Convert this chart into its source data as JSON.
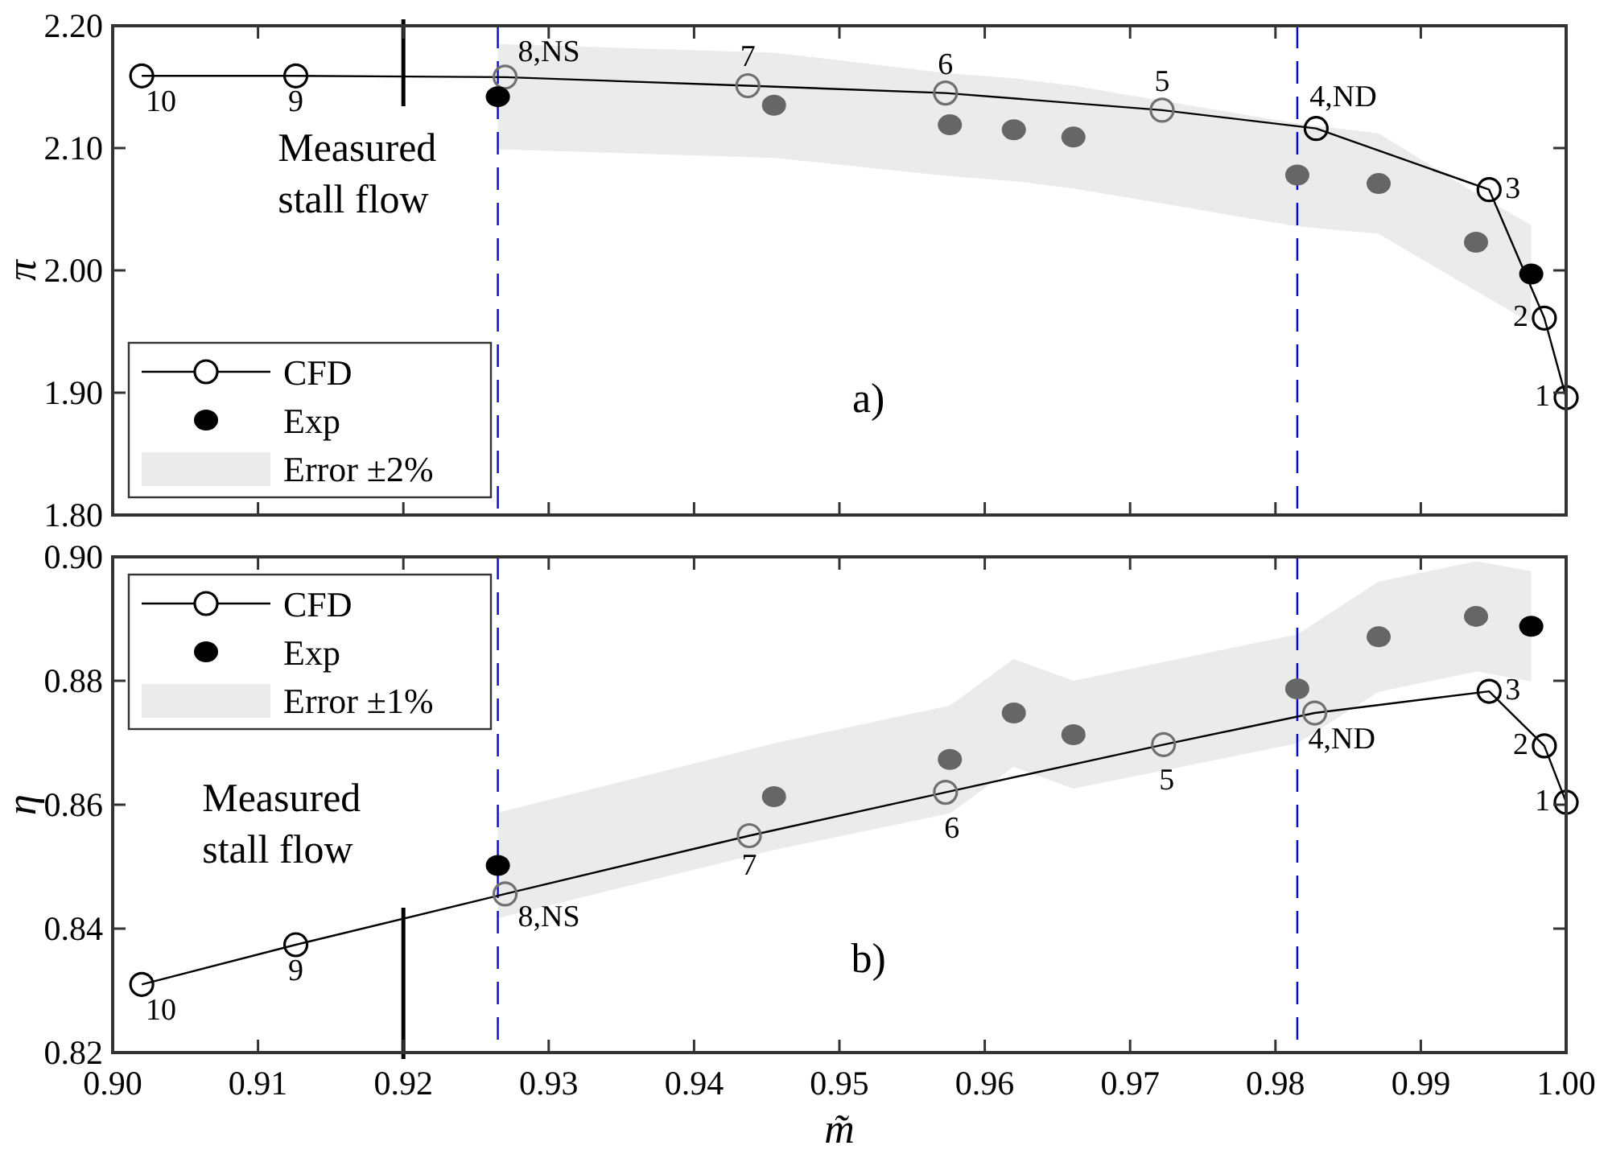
{
  "chart_data": [
    {
      "type": "line",
      "ylabel": "π",
      "xlim": [
        0.9,
        1.0
      ],
      "xticks": [
        0.9,
        0.91,
        0.92,
        0.93,
        0.94,
        0.95,
        0.96,
        0.97,
        0.98,
        0.99,
        1.0
      ],
      "ylim": [
        1.8,
        2.2
      ],
      "yticks": [
        {
          "value": 1.8,
          "label": "1.80"
        },
        {
          "value": 1.9,
          "label": "1.90"
        },
        {
          "value": 2.0,
          "label": "2.00"
        },
        {
          "value": 2.1,
          "label": "2.10"
        },
        {
          "value": 2.2,
          "label": "2.20"
        }
      ],
      "tick_labels": "y",
      "grid": false,
      "legend": "bottom left",
      "marker": "circle",
      "line_style": "solid",
      "series": [
        {
          "name": "CFD",
          "type": "line",
          "color": "#000000",
          "colors": [
            "#000000",
            "#000000",
            "#707070",
            "#707070",
            "#707070",
            "#707070",
            "#000000",
            "#000000",
            "#000000",
            "#000000"
          ],
          "x": [
            0.902,
            0.9126,
            0.927,
            0.9437,
            0.9573,
            0.9722,
            0.9828,
            0.9947,
            0.9985,
            1.0
          ],
          "values": [
            2.159,
            2.159,
            2.158,
            2.151,
            2.145,
            2.131,
            2.116,
            2.066,
            1.961,
            1.896
          ]
        },
        {
          "name": "Exp",
          "type": "scatter",
          "color": "#000000",
          "colors": [
            "#000000",
            "#666666",
            "#666666",
            "#666666",
            "#666666",
            "#666666",
            "#666666",
            "#666666",
            "#000000"
          ],
          "x": [
            0.9265,
            0.9455,
            0.9576,
            0.962,
            0.9661,
            0.9815,
            0.9871,
            0.9938,
            0.9976
          ],
          "values": [
            2.142,
            2.135,
            2.119,
            2.115,
            2.109,
            2.078,
            2.071,
            2.023,
            1.997
          ],
          "lower": [
            2.099,
            2.092,
            2.077,
            2.073,
            2.067,
            2.036,
            2.03,
            1.983,
            1.957
          ],
          "upper": [
            2.185,
            2.178,
            2.161,
            2.157,
            2.151,
            2.12,
            2.112,
            2.063,
            2.037
          ]
        }
      ],
      "ref_lines": [
        {
          "axis": "x",
          "value": 0.92,
          "label": "Measured stall flow",
          "color": "#000000",
          "line_style": "solid"
        },
        {
          "axis": "x",
          "value": 0.9265,
          "color": "#0000ff",
          "line_style": "dashed"
        },
        {
          "axis": "x",
          "value": 0.9815,
          "color": "#0000ff",
          "line_style": "dashed"
        }
      ],
      "annotations": [
        {
          "text": "10",
          "x": 0.902,
          "y": 2.159
        },
        {
          "text": "9",
          "x": 0.9126,
          "y": 2.159
        },
        {
          "text": "8,NS",
          "x": 0.927,
          "y": 2.158
        },
        {
          "text": "7",
          "x": 0.9437,
          "y": 2.151
        },
        {
          "text": "6",
          "x": 0.9573,
          "y": 2.145
        },
        {
          "text": "5",
          "x": 0.9722,
          "y": 2.131
        },
        {
          "text": "4,ND",
          "x": 0.9828,
          "y": 2.116
        },
        {
          "text": "3",
          "x": 0.9947,
          "y": 2.066
        },
        {
          "text": "2",
          "x": 0.9985,
          "y": 1.961
        },
        {
          "text": "1",
          "x": 1.0,
          "y": 1.896
        },
        "a)",
        "Error ±2%"
      ]
    },
    {
      "type": "line",
      "xlabel": "m̃",
      "ylabel": "η",
      "xlim": [
        0.9,
        1.0
      ],
      "xticks": [
        {
          "value": 0.9,
          "label": "0.90"
        },
        0.91,
        0.92,
        0.93,
        0.94,
        0.95,
        0.96,
        0.97,
        0.98,
        0.99,
        {
          "value": 1.0,
          "label": "1.00"
        }
      ],
      "ylim": [
        0.82,
        0.9
      ],
      "yticks": [
        0.82,
        0.84,
        0.86,
        0.88,
        {
          "value": 0.9,
          "label": "0.90"
        }
      ],
      "grid": false,
      "legend": "top left",
      "marker": "circle",
      "line_style": "solid",
      "series": [
        {
          "name": "CFD",
          "type": "line",
          "color": "#000000",
          "colors": [
            "#000000",
            "#000000",
            "#707070",
            "#707070",
            "#707070",
            "#707070",
            "#707070",
            "#000000",
            "#000000",
            "#000000"
          ],
          "x": [
            0.902,
            0.9126,
            0.927,
            0.9438,
            0.9573,
            0.9723,
            0.9827,
            0.9947,
            0.9985,
            1.0
          ],
          "values": [
            0.831,
            0.8374,
            0.8456,
            0.855,
            0.862,
            0.8697,
            0.8748,
            0.8783,
            0.8695,
            0.8604
          ]
        },
        {
          "name": "Exp",
          "type": "scatter",
          "color": "#000000",
          "colors": [
            "#000000",
            "#666666",
            "#666666",
            "#666666",
            "#666666",
            "#666666",
            "#666666",
            "#666666",
            "#000000"
          ],
          "x": [
            0.9265,
            0.9455,
            0.9576,
            0.962,
            0.9661,
            0.9815,
            0.9871,
            0.9938,
            0.9976
          ],
          "values": [
            0.8502,
            0.8613,
            0.8673,
            0.8748,
            0.8713,
            0.8787,
            0.8871,
            0.8904,
            0.8888
          ],
          "lower": [
            0.8417,
            0.8527,
            0.8586,
            0.8661,
            0.8626,
            0.8699,
            0.8782,
            0.8815,
            0.8799
          ],
          "upper": [
            0.8587,
            0.8699,
            0.876,
            0.8835,
            0.88,
            0.8875,
            0.896,
            0.8993,
            0.8977
          ]
        }
      ],
      "ref_lines": [
        {
          "axis": "x",
          "value": 0.92,
          "label": "Measured stall flow",
          "color": "#000000",
          "line_style": "solid"
        },
        {
          "axis": "x",
          "value": 0.9265,
          "color": "#0000ff",
          "line_style": "dashed"
        },
        {
          "axis": "x",
          "value": 0.9815,
          "color": "#0000ff",
          "line_style": "dashed"
        }
      ],
      "annotations": [
        {
          "text": "10",
          "x": 0.902,
          "y": 0.831
        },
        {
          "text": "9",
          "x": 0.9126,
          "y": 0.8374
        },
        {
          "text": "8,NS",
          "x": 0.927,
          "y": 0.8456
        },
        {
          "text": "7",
          "x": 0.9438,
          "y": 0.855
        },
        {
          "text": "6",
          "x": 0.9573,
          "y": 0.862
        },
        {
          "text": "5",
          "x": 0.9723,
          "y": 0.8697
        },
        {
          "text": "4,ND",
          "x": 0.9827,
          "y": 0.8748
        },
        {
          "text": "3",
          "x": 0.9947,
          "y": 0.8783
        },
        {
          "text": "2",
          "x": 0.9985,
          "y": 0.8695
        },
        {
          "text": "1",
          "x": 1.0,
          "y": 0.8604
        },
        "b)",
        "Error ±1%"
      ]
    }
  ]
}
